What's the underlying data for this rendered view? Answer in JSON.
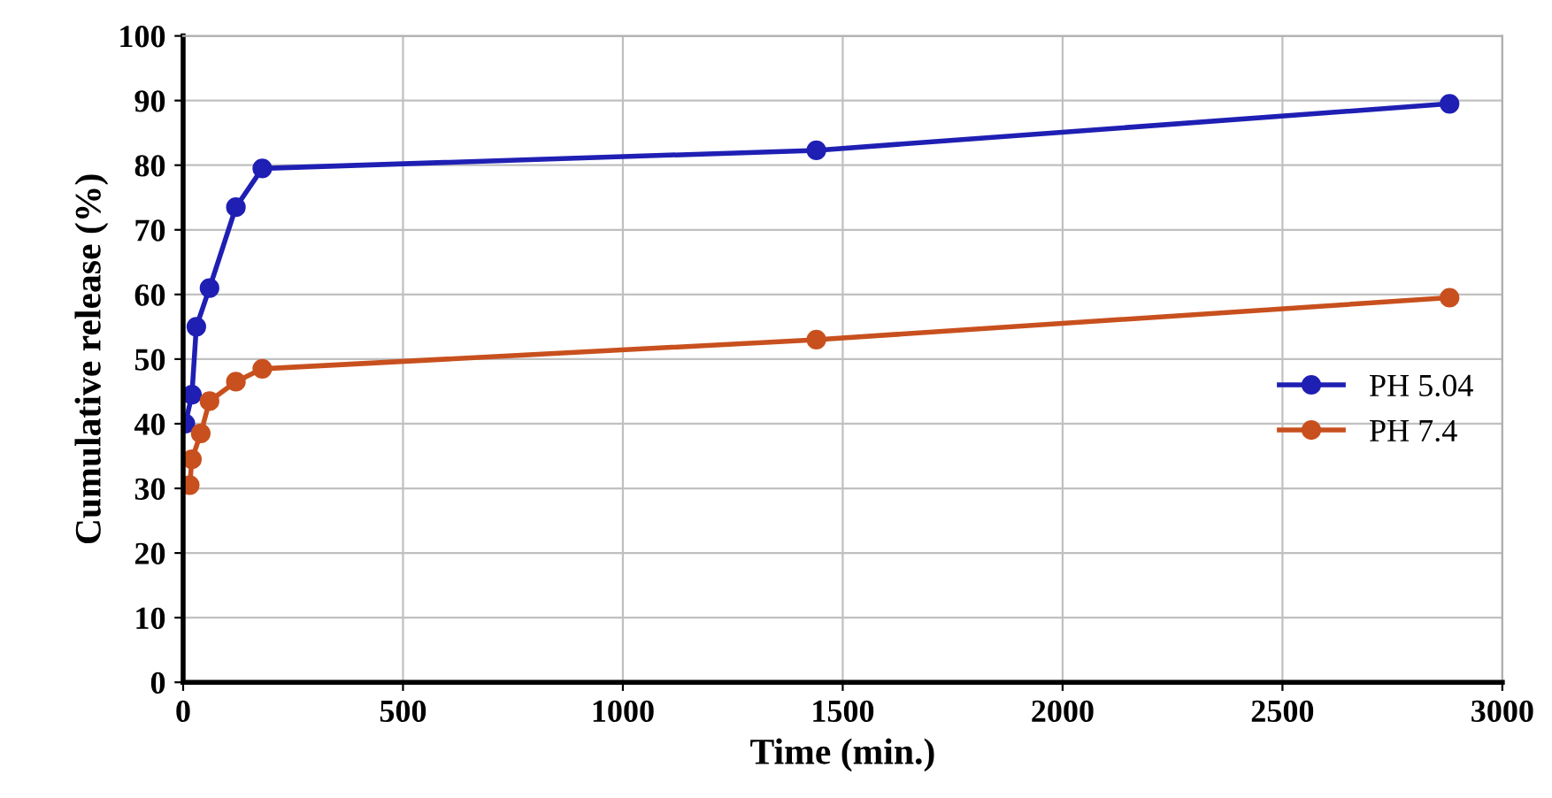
{
  "chart_data": {
    "type": "line",
    "xlabel": "Time (min.)",
    "ylabel": "Cumulative release (%)",
    "xlim": [
      0,
      3000
    ],
    "xticks": [
      0,
      500,
      1000,
      1500,
      2000,
      2500,
      3000
    ],
    "ylim": [
      0,
      100
    ],
    "yticks": [
      0,
      10,
      20,
      30,
      40,
      50,
      60,
      70,
      80,
      90,
      100
    ],
    "grid": true,
    "legend": "right",
    "marker": "circle",
    "line_style": "solid",
    "series": [
      {
        "name": "PH 5.04",
        "color": "#1f1fb4",
        "x": [
          5,
          20,
          30,
          60,
          120,
          180,
          1440,
          2880
        ],
        "values": [
          40,
          44.5,
          55,
          61,
          73.5,
          79.5,
          82.3,
          89.5
        ]
      },
      {
        "name": "PH 7.4",
        "color": "#c8501e",
        "x": [
          15,
          20,
          40,
          60,
          120,
          180,
          1440,
          2880
        ],
        "values": [
          30.5,
          34.5,
          38.5,
          43.5,
          46.5,
          48.5,
          53,
          59.5
        ]
      }
    ]
  }
}
